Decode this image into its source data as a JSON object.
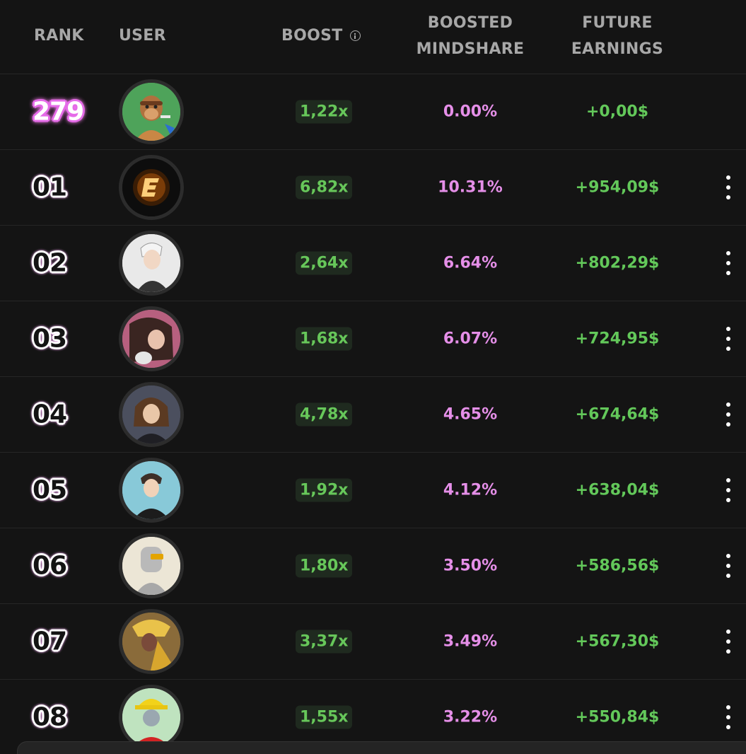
{
  "header": {
    "rank": "RANK",
    "user": "USER",
    "boost": "BOOST",
    "boosted_line1": "BOOSTED",
    "boosted_line2": "MINDSHARE",
    "future_line1": "FUTURE",
    "future_line2": "EARNINGS"
  },
  "current_user": {
    "rank": "279",
    "boost": "1,22x",
    "mindshare": "0.00%",
    "earnings": "+0,00$",
    "avatar_icon": "ape-avatar-icon",
    "avatar_bg": "#4ea35a"
  },
  "rows": [
    {
      "rank": "01",
      "boost": "6,82x",
      "mindshare": "10.31%",
      "earnings": "+954,09$",
      "avatar_icon": "e-logo-avatar-icon",
      "avatar_bg": "#0d0d0d"
    },
    {
      "rank": "02",
      "boost": "2,64x",
      "mindshare": "6.64%",
      "earnings": "+802,29$",
      "avatar_icon": "anime-boy-avatar-icon",
      "avatar_bg": "#e9e9e9"
    },
    {
      "rank": "03",
      "boost": "1,68x",
      "mindshare": "6.07%",
      "earnings": "+724,95$",
      "avatar_icon": "woman-photo-avatar-icon",
      "avatar_bg": "#b7607f"
    },
    {
      "rank": "04",
      "boost": "4,78x",
      "mindshare": "4.65%",
      "earnings": "+674,64$",
      "avatar_icon": "anime-girl-avatar-icon",
      "avatar_bg": "#4b4f5e"
    },
    {
      "rank": "05",
      "boost": "1,92x",
      "mindshare": "4.12%",
      "earnings": "+638,04$",
      "avatar_icon": "anime-guy-avatar-icon",
      "avatar_bg": "#88c9d8"
    },
    {
      "rank": "06",
      "boost": "1,80x",
      "mindshare": "3.50%",
      "earnings": "+586,56$",
      "avatar_icon": "robot-avatar-icon",
      "avatar_bg": "#ece6d6"
    },
    {
      "rank": "07",
      "boost": "3,37x",
      "mindshare": "3.49%",
      "earnings": "+567,30$",
      "avatar_icon": "warrior-avatar-icon",
      "avatar_bg": "#8a6b3a"
    },
    {
      "rank": "08",
      "boost": "1,55x",
      "mindshare": "3.22%",
      "earnings": "+550,84$",
      "avatar_icon": "hardhat-robot-avatar-icon",
      "avatar_bg": "#bfe3bf"
    }
  ],
  "colors": {
    "background": "#141414",
    "boost_green": "#67c75a",
    "mindshare_pink": "#e58fe8",
    "earnings_green": "#63c85a"
  }
}
